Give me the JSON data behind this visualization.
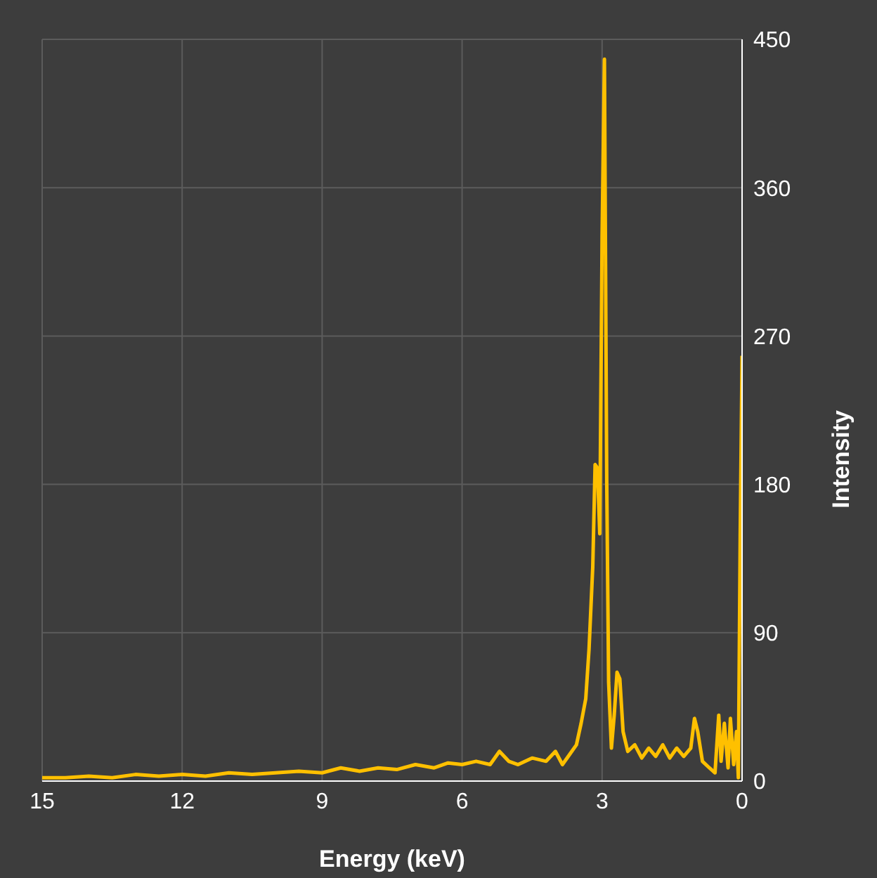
{
  "chart_data": {
    "type": "line",
    "xlabel": "Energy (keV)",
    "ylabel": "Intensity",
    "xlim": [
      15,
      0
    ],
    "xticks": [
      15,
      12,
      9,
      6,
      3,
      0
    ],
    "ylim": [
      0,
      450
    ],
    "yticks": [
      0,
      90,
      180,
      270,
      360,
      450
    ],
    "grid": true,
    "legend": false,
    "marker": "none",
    "line_style": "solid",
    "x": [
      0,
      0.04,
      0.08,
      0.12,
      0.18,
      0.25,
      0.3,
      0.38,
      0.45,
      0.5,
      0.58,
      0.7,
      0.85,
      0.95,
      1.02,
      1.1,
      1.25,
      1.4,
      1.55,
      1.7,
      1.85,
      2.0,
      2.15,
      2.3,
      2.45,
      2.55,
      2.62,
      2.68,
      2.74,
      2.8,
      2.86,
      2.9,
      2.95,
      3.0,
      3.05,
      3.1,
      3.15,
      3.2,
      3.28,
      3.35,
      3.45,
      3.55,
      3.7,
      3.85,
      4.0,
      4.2,
      4.5,
      4.8,
      5.0,
      5.2,
      5.4,
      5.7,
      6.0,
      6.3,
      6.6,
      7.0,
      7.4,
      7.8,
      8.2,
      8.6,
      9.0,
      9.5,
      10,
      10.5,
      11,
      11.5,
      12,
      12.5,
      13,
      13.5,
      14,
      14.5,
      15
    ],
    "series": [
      {
        "color": "#ffc000",
        "values": [
          258,
          150,
          2,
          30,
          10,
          38,
          8,
          35,
          12,
          40,
          5,
          8,
          12,
          30,
          38,
          20,
          15,
          20,
          14,
          22,
          15,
          20,
          14,
          22,
          18,
          30,
          62,
          66,
          40,
          20,
          60,
          180,
          438,
          330,
          150,
          190,
          192,
          130,
          80,
          50,
          35,
          22,
          16,
          10,
          18,
          12,
          14,
          10,
          12,
          18,
          10,
          12,
          10,
          11,
          8,
          10,
          7,
          8,
          6,
          8,
          5,
          6,
          5,
          4,
          5,
          3,
          4,
          3,
          4,
          2,
          3,
          2,
          2
        ]
      }
    ]
  }
}
